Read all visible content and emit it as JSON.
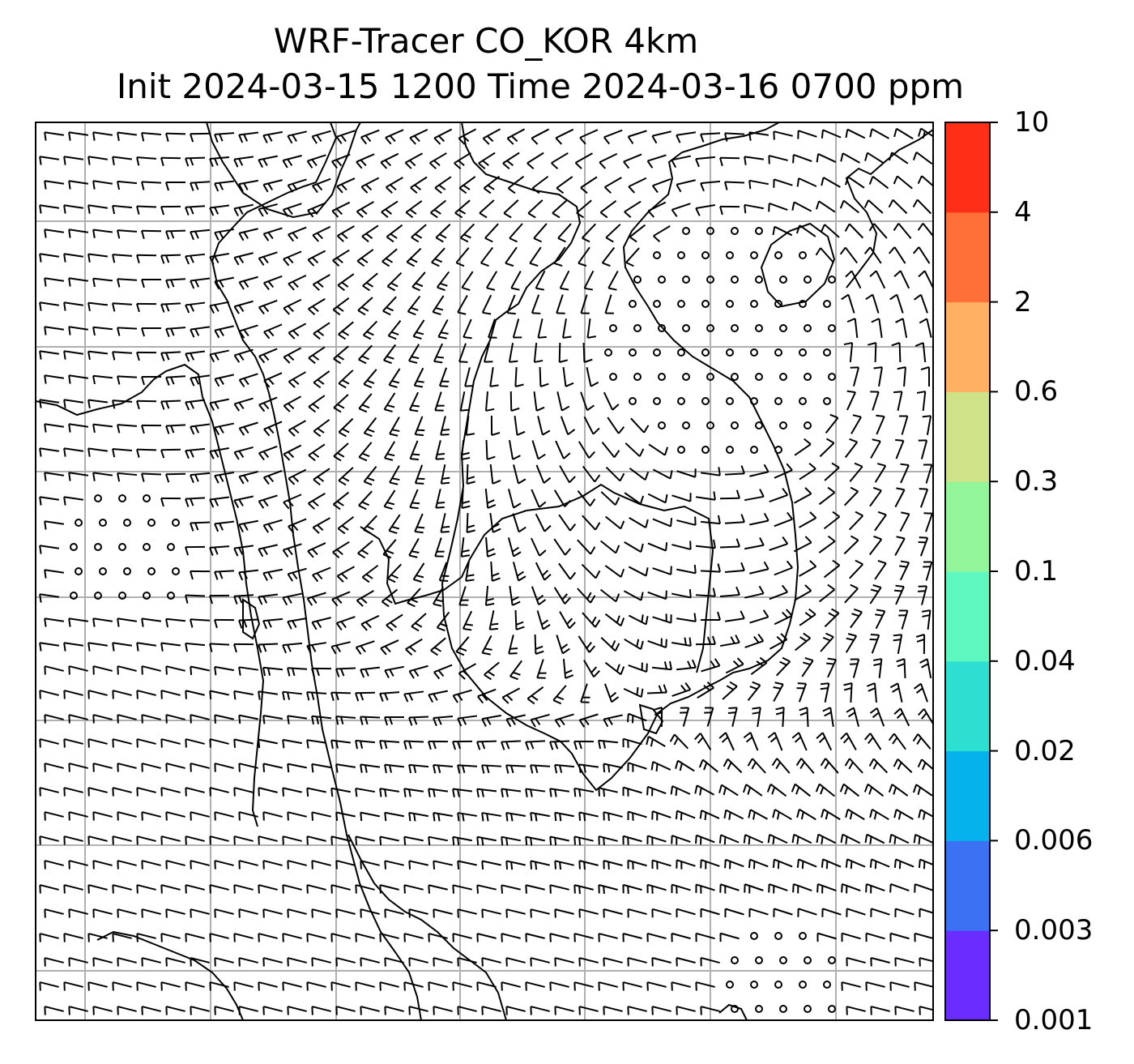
{
  "title": {
    "line1": "WRF-Tracer CO_KOR 4km",
    "line2": "Init 2024-03-15 1200 Time 2024-03-16 0700 ppm"
  },
  "colorbar": {
    "ticks": [
      "0.001",
      "0.003",
      "0.006",
      "0.02",
      "0.04",
      "0.1",
      "0.3",
      "0.6",
      "2",
      "4",
      "10"
    ],
    "colors": [
      "#6a2cff",
      "#3b72f3",
      "#05b2ec",
      "#2ddfd0",
      "#5ef7c0",
      "#92f59a",
      "#cfe288",
      "#ffb061",
      "#ff7039",
      "#ff2e17"
    ]
  },
  "map": {
    "wind_barb_color": "#000000",
    "coastline_color": "#000000",
    "gridline_color": "#b0b0b0",
    "gridlines": true,
    "calm_markers": "circles"
  }
}
